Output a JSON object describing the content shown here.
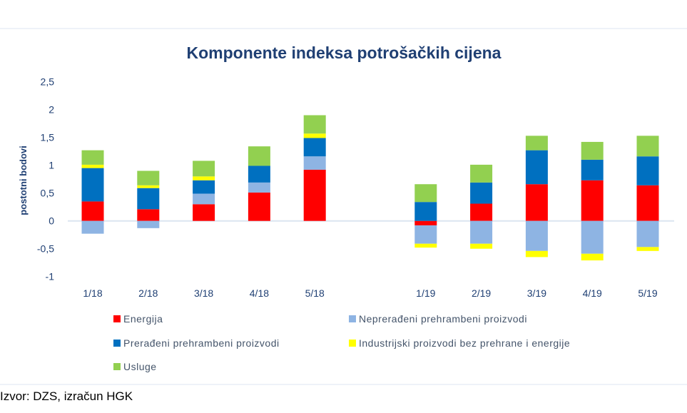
{
  "chart_data": {
    "type": "bar",
    "stacked": true,
    "title": "Komponente indeksa potrošačkih cijena",
    "ylabel": "postotni bodovi",
    "xlabel": "",
    "ylim": [
      -1,
      2.5
    ],
    "yticks": [
      "2,5",
      "2",
      "1,5",
      "1",
      "0,5",
      "0",
      "-0,5",
      "-1"
    ],
    "ytick_values": [
      2.5,
      2,
      1.5,
      1,
      0.5,
      0,
      -0.5,
      -1
    ],
    "grid": false,
    "legend": "bottom",
    "categories": [
      "1/18",
      "2/18",
      "3/18",
      "4/18",
      "5/18",
      "",
      "1/19",
      "2/19",
      "3/19",
      "4/19",
      "5/19"
    ],
    "series": [
      {
        "name": "Energija",
        "color": "#FF0000",
        "values": [
          0.35,
          0.21,
          0.3,
          0.51,
          0.92,
          null,
          -0.08,
          0.31,
          0.66,
          0.73,
          0.64
        ]
      },
      {
        "name": "Neprerađeni prehrambeni proizvodi",
        "color": "#8EB4E3",
        "values": [
          -0.23,
          -0.13,
          0.19,
          0.18,
          0.24,
          null,
          -0.33,
          -0.41,
          -0.54,
          -0.59,
          -0.47
        ]
      },
      {
        "name": "Prerađeni prehrambeni proizvodi",
        "color": "#0070C0",
        "values": [
          0.6,
          0.38,
          0.24,
          0.3,
          0.33,
          null,
          0.34,
          0.38,
          0.61,
          0.37,
          0.52
        ]
      },
      {
        "name": "Industrijski proizvodi bez prehrane i energije",
        "color": "#FFFF00",
        "values": [
          0.06,
          0.05,
          0.07,
          0.0,
          0.08,
          null,
          -0.07,
          -0.09,
          -0.11,
          -0.12,
          -0.07
        ]
      },
      {
        "name": "Usluge",
        "color": "#92D050",
        "values": [
          0.26,
          0.26,
          0.28,
          0.35,
          0.33,
          null,
          0.32,
          0.32,
          0.26,
          0.32,
          0.37
        ]
      }
    ]
  },
  "source": "Izvor: DZS, izračun HGK"
}
